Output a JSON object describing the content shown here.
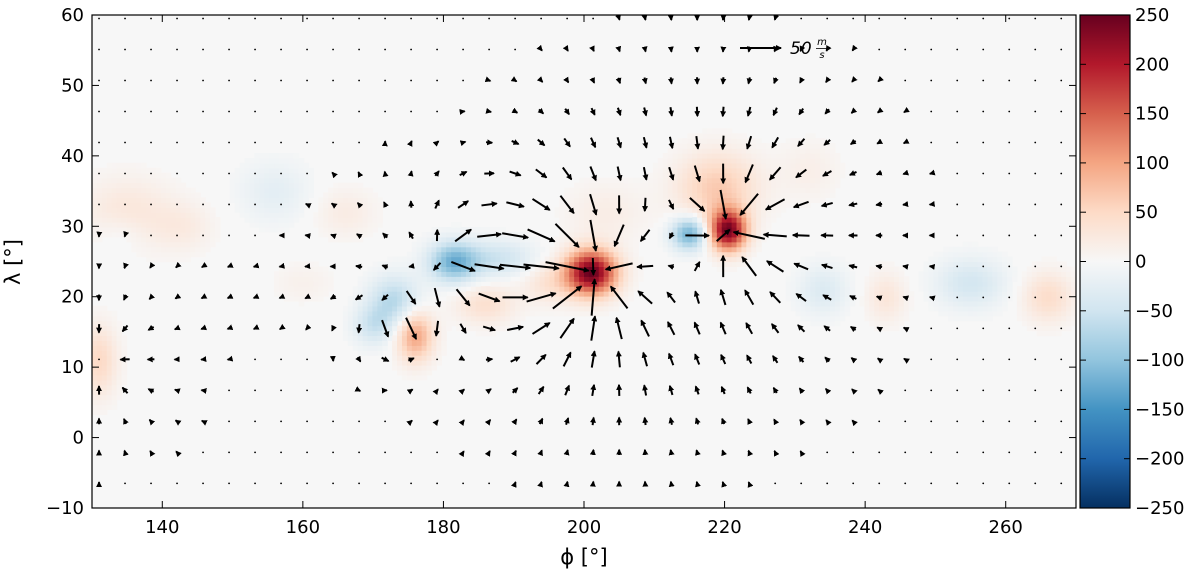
{
  "chart_data": {
    "type": "heatmap",
    "subtype": "vector-field-over-scalar-field",
    "xlabel": "ϕ [°]",
    "ylabel": "λ [°]",
    "xlim": [
      130,
      270
    ],
    "ylim": [
      -10,
      60
    ],
    "xticks": [
      "140",
      "160",
      "180",
      "200",
      "220",
      "240",
      "260"
    ],
    "xtick_values": [
      140,
      160,
      180,
      200,
      220,
      240,
      260
    ],
    "yticks": [
      "−10",
      "0",
      "10",
      "20",
      "30",
      "40",
      "50",
      "60"
    ],
    "ytick_values": [
      -10,
      0,
      10,
      20,
      30,
      40,
      50,
      60
    ],
    "colorbar": {
      "range": [
        -250,
        250
      ],
      "ticks": [
        "250",
        "200",
        "150",
        "100",
        "50",
        "0",
        "−50",
        "−100",
        "−150",
        "−200",
        "−250"
      ],
      "tick_values": [
        250,
        200,
        150,
        100,
        50,
        0,
        -50,
        -100,
        -150,
        -200,
        -250
      ],
      "colormap": "RdBu_r",
      "color_low": "#053061",
      "color_mid": "#f7f7f7",
      "color_high": "#67001f"
    },
    "reference_arrow": {
      "label": "50",
      "unit_num": "m",
      "unit_den": "s",
      "magnitude": 50
    },
    "arrow_color": "#000000",
    "scalar_blobs": [
      {
        "x": 201,
        "y": 23.5,
        "value": 250,
        "sx": 2.5,
        "sy": 2.2
      },
      {
        "x": 220.5,
        "y": 29.5,
        "value": 235,
        "sx": 1.8,
        "sy": 2.0
      },
      {
        "x": 219,
        "y": 35.5,
        "value": 65,
        "sx": 4.0,
        "sy": 3.5
      },
      {
        "x": 215,
        "y": 29,
        "value": -125,
        "sx": 1.8,
        "sy": 1.6
      },
      {
        "x": 181.5,
        "y": 25,
        "value": -120,
        "sx": 2.5,
        "sy": 2.0
      },
      {
        "x": 188,
        "y": 25.5,
        "value": -50,
        "sx": 3.5,
        "sy": 1.8
      },
      {
        "x": 173,
        "y": 19.5,
        "value": -70,
        "sx": 2.5,
        "sy": 2.5
      },
      {
        "x": 170,
        "y": 16,
        "value": -50,
        "sx": 2.0,
        "sy": 2.0
      },
      {
        "x": 176,
        "y": 14.5,
        "value": 100,
        "sx": 1.8,
        "sy": 2.5
      },
      {
        "x": 186,
        "y": 19,
        "value": 40,
        "sx": 3.0,
        "sy": 2.0
      },
      {
        "x": 195,
        "y": 22,
        "value": 35,
        "sx": 2.5,
        "sy": 2.0
      },
      {
        "x": 131,
        "y": 11,
        "value": 50,
        "sx": 1.8,
        "sy": 3.5
      },
      {
        "x": 135,
        "y": 32,
        "value": 30,
        "sx": 4.5,
        "sy": 3.5
      },
      {
        "x": 143,
        "y": 30,
        "value": 20,
        "sx": 3.0,
        "sy": 2.5
      },
      {
        "x": 156,
        "y": 35,
        "value": -25,
        "sx": 3.5,
        "sy": 3.0
      },
      {
        "x": 166,
        "y": 32,
        "value": 20,
        "sx": 3.0,
        "sy": 2.5
      },
      {
        "x": 134,
        "y": 29,
        "value": -15,
        "sx": 2.5,
        "sy": 2.0
      },
      {
        "x": 234,
        "y": 21,
        "value": -35,
        "sx": 2.5,
        "sy": 2.5
      },
      {
        "x": 243,
        "y": 20,
        "value": 30,
        "sx": 2.0,
        "sy": 2.5
      },
      {
        "x": 255,
        "y": 22,
        "value": -45,
        "sx": 3.5,
        "sy": 2.5
      },
      {
        "x": 266,
        "y": 20,
        "value": 45,
        "sx": 2.5,
        "sy": 2.5
      },
      {
        "x": 232,
        "y": 38,
        "value": 15,
        "sx": 3.0,
        "sy": 3.0
      },
      {
        "x": 160,
        "y": 22,
        "value": 12,
        "sx": 3.0,
        "sy": 2.0
      },
      {
        "x": 203,
        "y": 32,
        "value": 18,
        "sx": 4.0,
        "sy": 3.0
      }
    ],
    "flow_sources": [
      {
        "x": 201,
        "y": 23.5,
        "k": -1.0
      },
      {
        "x": 220.5,
        "y": 29.5,
        "k": -0.85
      },
      {
        "x": 181.5,
        "y": 25,
        "k": 0.45
      },
      {
        "x": 215,
        "y": 29,
        "k": 0.25
      },
      {
        "x": 173,
        "y": 19,
        "k": 0.3
      },
      {
        "x": 176,
        "y": 14.5,
        "k": -0.35
      },
      {
        "x": 131,
        "y": 11,
        "k": -0.25
      }
    ],
    "arrow_grid": {
      "x_start": 131,
      "x_step": 3.7,
      "y_start": -6.5,
      "y_step": 4.4
    }
  }
}
